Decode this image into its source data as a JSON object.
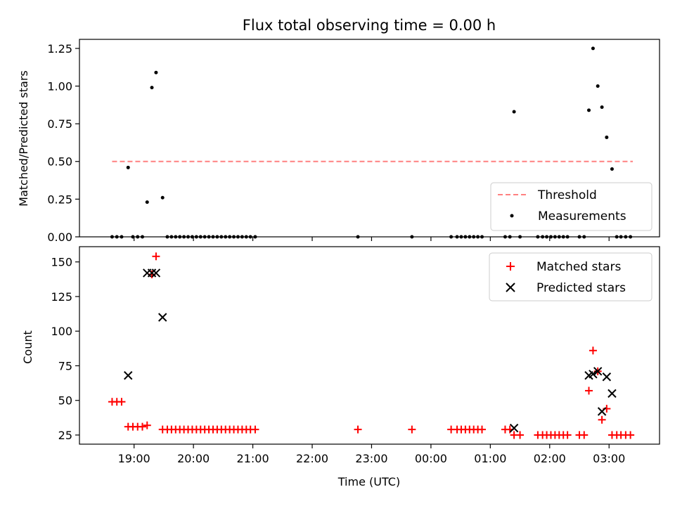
{
  "chart_data": [
    {
      "type": "scatter",
      "title": "Flux total observing time = 0.00 h",
      "xlabel": "",
      "ylabel": "Matched/Predicted stars",
      "xlim": [
        18.08,
        27.85
      ],
      "ylim": [
        0.0,
        1.31
      ],
      "yticks": [
        0.0,
        0.25,
        0.5,
        0.75,
        1.0,
        1.25
      ],
      "ytick_labels": [
        "0.00",
        "0.25",
        "0.50",
        "0.75",
        "1.00",
        "1.25"
      ],
      "xticks": [
        19,
        20,
        21,
        22,
        23,
        24,
        25,
        26,
        27
      ],
      "show_xtick_labels": false,
      "grid": false,
      "legend": {
        "placement": "lower-right",
        "entries": [
          "Threshold",
          "Measurements"
        ]
      },
      "series": [
        {
          "name": "Threshold",
          "kind": "dashed-line",
          "color": "#ff8080",
          "x": [
            18.63,
            27.4
          ],
          "y": [
            0.5,
            0.5
          ]
        },
        {
          "name": "Measurements",
          "kind": "dot",
          "color": "#000000",
          "x": [
            18.63,
            18.71,
            18.79,
            18.9,
            18.98,
            19.06,
            19.14,
            19.22,
            19.3,
            19.37,
            19.48,
            19.56,
            19.63,
            19.7,
            19.77,
            19.84,
            19.91,
            19.98,
            20.05,
            20.12,
            20.19,
            20.26,
            20.33,
            20.4,
            20.47,
            20.54,
            20.61,
            20.68,
            20.75,
            20.82,
            20.89,
            20.96,
            21.04,
            22.77,
            23.68,
            24.34,
            24.44,
            24.51,
            24.58,
            24.65,
            24.72,
            24.79,
            24.86,
            25.25,
            25.33,
            25.4,
            25.5,
            25.8,
            25.88,
            25.95,
            26.02,
            26.09,
            26.16,
            26.23,
            26.3,
            26.5,
            26.58,
            26.66,
            26.73,
            26.81,
            26.88,
            26.96,
            27.05,
            27.13,
            27.2,
            27.28,
            27.36
          ],
          "y": [
            0,
            0,
            0,
            0.46,
            0,
            0,
            0,
            0.23,
            0.99,
            1.09,
            0.26,
            0,
            0,
            0,
            0,
            0,
            0,
            0,
            0,
            0,
            0,
            0,
            0,
            0,
            0,
            0,
            0,
            0,
            0,
            0,
            0,
            0,
            0,
            0,
            0,
            0,
            0,
            0,
            0,
            0,
            0,
            0,
            0,
            0,
            0,
            0.83,
            0,
            0,
            0,
            0,
            0,
            0,
            0,
            0,
            0,
            0,
            0,
            0.84,
            1.25,
            1.0,
            0.86,
            0.66,
            0.45,
            0,
            0,
            0,
            0
          ]
        }
      ]
    },
    {
      "type": "scatter",
      "title": "",
      "xlabel": "Time (UTC)",
      "ylabel": "Count",
      "xlim": [
        18.08,
        27.85
      ],
      "ylim": [
        18.4,
        161.0
      ],
      "yticks": [
        25,
        50,
        75,
        100,
        125,
        150
      ],
      "ytick_labels": [
        "25",
        "50",
        "75",
        "100",
        "125",
        "150"
      ],
      "xticks": [
        19,
        20,
        21,
        22,
        23,
        24,
        25,
        26,
        27
      ],
      "xtick_labels": [
        "19:00",
        "20:00",
        "21:00",
        "22:00",
        "23:00",
        "00:00",
        "01:00",
        "02:00",
        "03:00"
      ],
      "grid": false,
      "legend": {
        "placement": "upper-right",
        "entries": [
          "Matched stars",
          "Predicted stars"
        ]
      },
      "series": [
        {
          "name": "Matched stars",
          "kind": "plus",
          "color": "#ff0000",
          "x": [
            18.63,
            18.71,
            18.79,
            18.9,
            18.98,
            19.06,
            19.14,
            19.22,
            19.3,
            19.37,
            19.48,
            19.56,
            19.63,
            19.7,
            19.77,
            19.84,
            19.91,
            19.98,
            20.05,
            20.12,
            20.19,
            20.26,
            20.33,
            20.4,
            20.47,
            20.54,
            20.61,
            20.68,
            20.75,
            20.82,
            20.89,
            20.96,
            21.04,
            22.77,
            23.68,
            24.34,
            24.44,
            24.51,
            24.58,
            24.65,
            24.72,
            24.79,
            24.86,
            25.25,
            25.33,
            25.4,
            25.5,
            25.8,
            25.88,
            25.95,
            26.02,
            26.09,
            26.16,
            26.23,
            26.3,
            26.5,
            26.58,
            26.66,
            26.73,
            26.81,
            26.88,
            26.96,
            27.05,
            27.13,
            27.2,
            27.28,
            27.36
          ],
          "y": [
            49,
            49,
            49,
            31,
            31,
            31,
            31,
            32,
            141,
            154,
            29,
            29,
            29,
            29,
            29,
            29,
            29,
            29,
            29,
            29,
            29,
            29,
            29,
            29,
            29,
            29,
            29,
            29,
            29,
            29,
            29,
            29,
            29,
            29,
            29,
            29,
            29,
            29,
            29,
            29,
            29,
            29,
            29,
            29,
            29,
            25,
            25,
            25,
            25,
            25,
            25,
            25,
            25,
            25,
            25,
            25,
            25,
            57,
            86,
            71,
            36,
            44,
            25,
            25,
            25,
            25,
            25
          ]
        },
        {
          "name": "Predicted stars",
          "kind": "x",
          "color": "#000000",
          "x": [
            18.9,
            19.22,
            19.3,
            19.37,
            19.48,
            25.4,
            26.66,
            26.73,
            26.81,
            26.88,
            26.96,
            27.05
          ],
          "y": [
            68,
            142,
            142,
            142,
            110,
            30,
            68,
            69,
            71,
            42,
            67,
            55
          ]
        }
      ]
    }
  ]
}
